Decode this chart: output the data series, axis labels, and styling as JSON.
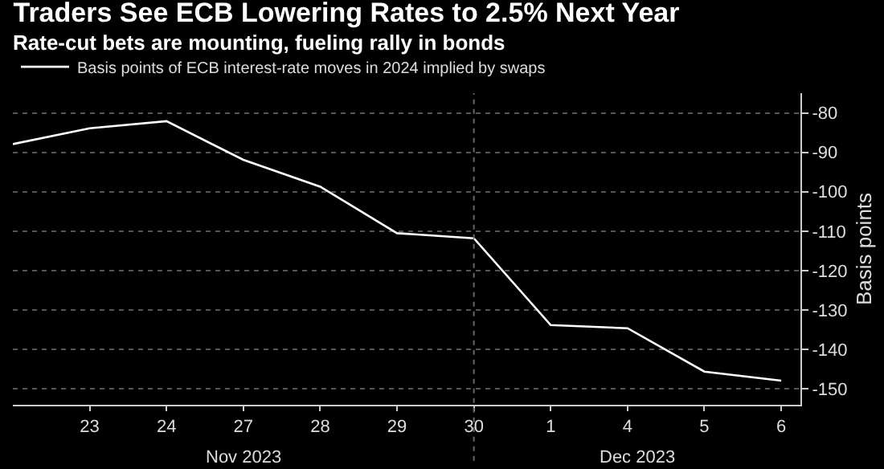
{
  "chart_data": {
    "type": "line",
    "title": "Traders See ECB Lowering Rates to 2.5% Next Year",
    "subtitle": "Rate-cut bets are mounting, fueling rally in bonds",
    "ylabel": "Basis points",
    "categories": [
      null,
      "23",
      "24",
      "27",
      "28",
      "29",
      "30",
      "1",
      "4",
      "5",
      "6"
    ],
    "series": [
      {
        "name": "Basis points of ECB interest-rate moves in 2024 implied by swaps",
        "color": "#ffffff",
        "values": [
          -87.9,
          -83.9,
          -82.1,
          -91.9,
          -98.7,
          -110.5,
          -111.8,
          -133.8,
          -134.6,
          -145.6,
          -147.9
        ]
      }
    ],
    "ylim": [
      -154,
      -75
    ],
    "yticks": [
      -80,
      -90,
      -100,
      -110,
      -120,
      -130,
      -140,
      -150
    ],
    "annotations": [
      "Nov 2023",
      "Dec 2023"
    ],
    "ref_lines": [
      {
        "axis": "x",
        "value": "30",
        "color": "#666666",
        "line_style": "dotted"
      }
    ],
    "grid": "y",
    "legend": "top left",
    "marker": "none",
    "line_style": "solid"
  }
}
